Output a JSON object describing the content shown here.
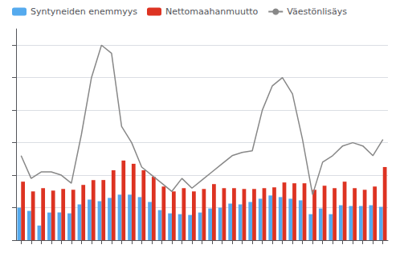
{
  "chart_data": {
    "type": "bar",
    "categories": [
      null,
      null,
      null,
      null,
      null,
      null,
      null,
      null,
      null,
      null,
      null,
      null,
      null,
      null,
      null,
      null,
      null,
      null,
      null,
      null,
      null,
      null,
      null,
      null,
      null,
      null,
      null,
      null,
      null,
      null,
      null,
      null,
      null,
      null,
      null,
      null,
      null
    ],
    "series": [
      {
        "name": "Syntyneiden enemmyys",
        "type": "bar",
        "color": "#55AAEE",
        "values": [
          2000,
          1800,
          900,
          1700,
          1700,
          1650,
          2200,
          2500,
          2400,
          2600,
          2800,
          2800,
          2650,
          2350,
          1850,
          1650,
          1600,
          1550,
          1700,
          1950,
          2000,
          2250,
          2200,
          2350,
          2550,
          2750,
          2650,
          2550,
          2450,
          1600,
          1950,
          1600,
          2150,
          2100,
          2100,
          2150,
          2050
        ]
      },
      {
        "name": "Nettomaahanmuutto",
        "type": "bar",
        "color": "#DD3322",
        "values": [
          3600,
          3000,
          3200,
          3050,
          3150,
          3100,
          3400,
          3700,
          3700,
          4300,
          4900,
          4700,
          4300,
          3900,
          3300,
          3000,
          3200,
          3000,
          3150,
          3450,
          3200,
          3200,
          3150,
          3150,
          3200,
          3250,
          3550,
          3500,
          3500,
          3100,
          3350,
          3200,
          3600,
          3200,
          3100,
          3300,
          4500
        ]
      },
      {
        "name": "Väestönlisäys",
        "type": "line",
        "color": "#888888",
        "marker": "none",
        "values": [
          5200,
          3800,
          4200,
          4200,
          4000,
          3500,
          6500,
          10000,
          12000,
          11500,
          7000,
          6000,
          4500,
          4000,
          3500,
          3000,
          3800,
          3200,
          3700,
          4200,
          4700,
          5200,
          5400,
          5500,
          8000,
          9500,
          10000,
          9000,
          6200,
          2800,
          4800,
          5200,
          5800,
          6000,
          5800,
          5200,
          6200
        ]
      }
    ],
    "ylim": [
      0,
      13000
    ],
    "yticks": [
      0,
      2000,
      4000,
      6000,
      8000,
      10000,
      12000
    ],
    "grid": true,
    "legend": "upper left",
    "tick_labels": false
  }
}
